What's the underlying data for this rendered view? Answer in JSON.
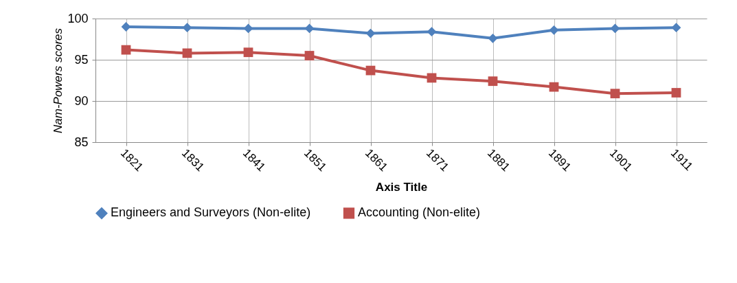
{
  "chart_data": {
    "type": "line",
    "xlabel": "Axis Title",
    "ylabel": "Nam-Powers scores",
    "categories": [
      "1821",
      "1831",
      "1841",
      "1851",
      "1861",
      "1871",
      "1881",
      "1891",
      "1901",
      "1911"
    ],
    "series": [
      {
        "name": "Engineers and Surveyors (Non-elite)",
        "color": "#4f81bd",
        "marker": "diamond",
        "values": [
          99.0,
          98.9,
          98.8,
          98.8,
          98.2,
          98.4,
          97.6,
          98.6,
          98.8,
          98.9
        ]
      },
      {
        "name": "Accounting (Non-elite)",
        "color": "#c0504d",
        "marker": "square",
        "values": [
          96.2,
          95.8,
          95.9,
          95.5,
          93.7,
          92.8,
          92.4,
          91.7,
          90.9,
          91.0
        ]
      }
    ],
    "ylim": [
      85,
      100
    ],
    "yticks": [
      85,
      90,
      95,
      100
    ],
    "grid": true,
    "legend": "bottom",
    "line_style": "solid"
  }
}
